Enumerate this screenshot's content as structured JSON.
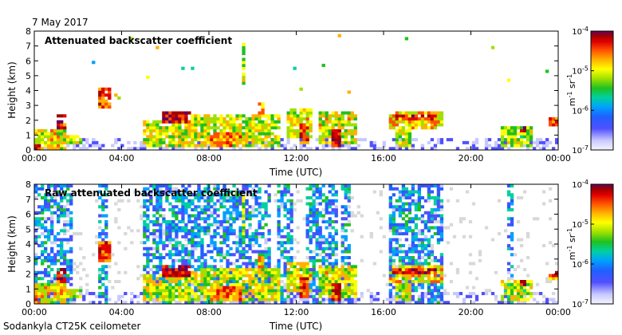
{
  "header": {
    "date": "7 May 2017"
  },
  "footer": {
    "instrument": "Sodankyla CT25K ceilometer"
  },
  "chart_data": [
    {
      "type": "heatmap",
      "title": "Attenuated backscatter coefficient",
      "xlabel": "Time (UTC)",
      "ylabel": "Height (km)",
      "xticks": [
        "00:00",
        "04:00",
        "08:00",
        "12:00",
        "16:00",
        "20:00",
        "00:00"
      ],
      "yticks": [
        0,
        1,
        2,
        3,
        4,
        5,
        6,
        7,
        8
      ],
      "xlim_hours": [
        0,
        24
      ],
      "ylim_km": [
        0,
        8
      ],
      "colorbar": {
        "label": "m-1 sr-1",
        "scale": "log",
        "range": [
          1e-07,
          0.0001
        ],
        "ticks": [
          "10-7",
          "10-6",
          "10-5",
          "10-4"
        ]
      }
    },
    {
      "type": "heatmap",
      "title": "Raw attenuated backscatter coefficient",
      "xlabel": "Time (UTC)",
      "ylabel": "Height (km)",
      "xticks": [
        "00:00",
        "04:00",
        "08:00",
        "12:00",
        "16:00",
        "20:00",
        "00:00"
      ],
      "yticks": [
        0,
        1,
        2,
        3,
        4,
        5,
        6,
        7,
        8
      ],
      "xlim_hours": [
        0,
        24
      ],
      "ylim_km": [
        0,
        8
      ],
      "colorbar": {
        "label": "m-1 sr-1",
        "scale": "log",
        "range": [
          1e-07,
          0.0001
        ],
        "ticks": [
          "10-7",
          "10-6",
          "10-5",
          "10-4"
        ]
      }
    }
  ],
  "colors": {
    "colormap": [
      "#f4f4ff",
      "#c8c8ff",
      "#5050ff",
      "#2060ff",
      "#00a0ff",
      "#00d0a0",
      "#20c020",
      "#a0e000",
      "#ffff00",
      "#ffb000",
      "#ff5000",
      "#e00000",
      "#a00000",
      "#600060"
    ],
    "clear_sky": "#ffffff",
    "noise_gray": "#d8d8d8"
  }
}
